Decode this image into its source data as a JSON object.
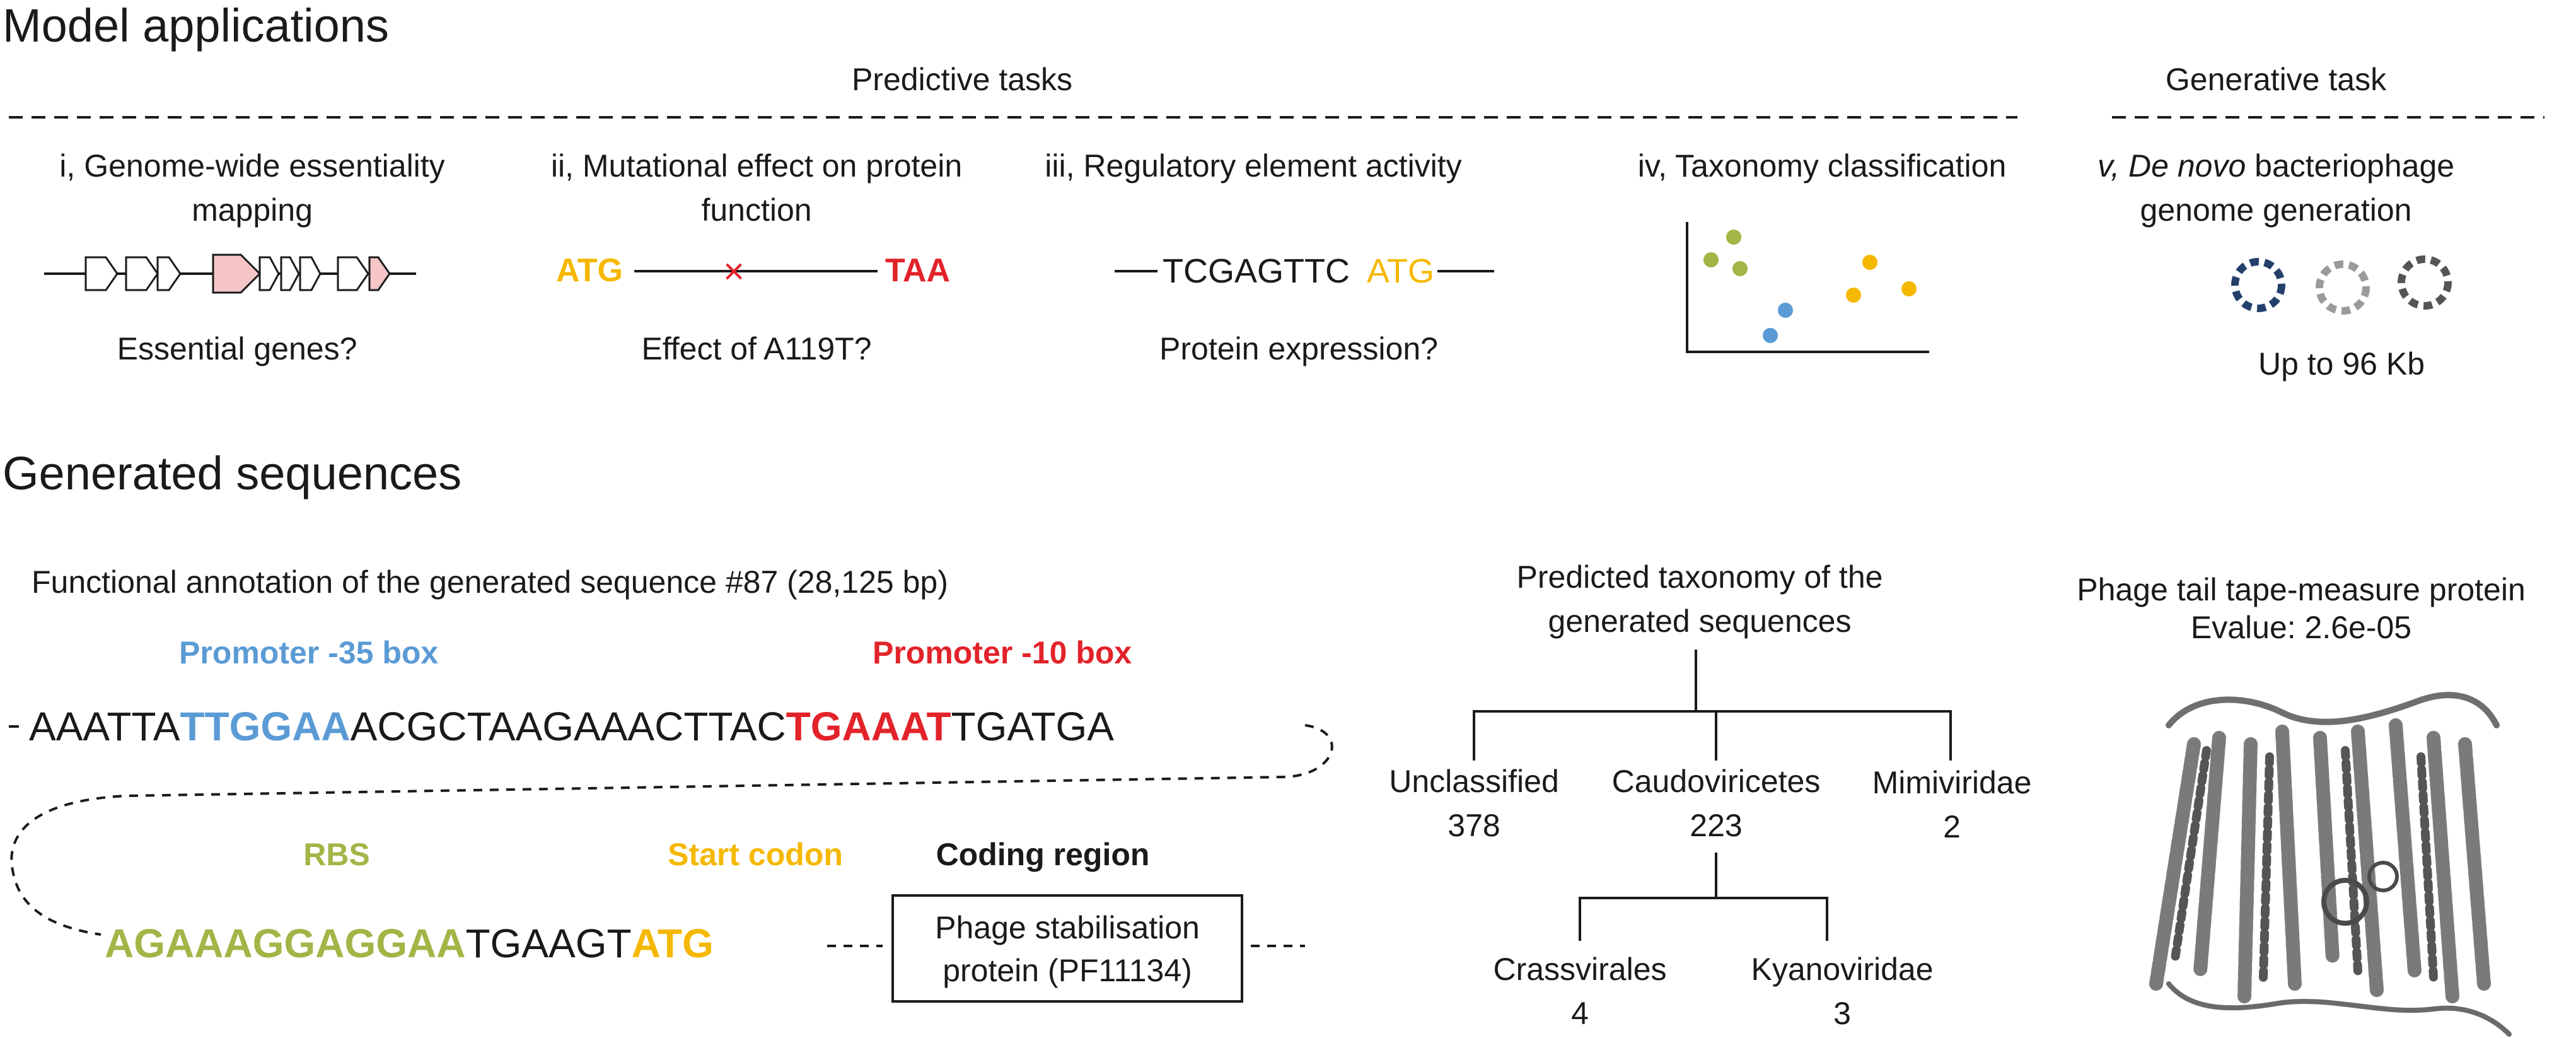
{
  "colors": {
    "blue": "#5b9bd5",
    "red": "#e2232a",
    "orange": "#f5b800",
    "olive": "#a4b446",
    "pink": "#f6c6c6",
    "navy": "#24406b",
    "gray": "#8a8a8a",
    "darkgray": "#555555"
  },
  "section_model": {
    "title": "Model applications",
    "predictive_header": "Predictive tasks",
    "generative_header": "Generative task"
  },
  "task_i": {
    "title_line1": "i, Genome-wide essentiality",
    "title_line2": "mapping",
    "question": "Essential genes?",
    "icon": "gene-arrows-icon"
  },
  "task_ii": {
    "title_line1": "ii, Mutational effect on protein",
    "title_line2": "function",
    "start": "ATG",
    "stop": "TAA",
    "mutation_mark": "×",
    "question": "Effect of A119T?"
  },
  "task_iii": {
    "title": "iii, Regulatory element activity",
    "sequence": "TCGAGTTC",
    "codon": "ATG",
    "question": "Protein expression?"
  },
  "task_iv": {
    "title": "iv, Taxonomy classification",
    "icon": "scatter-plot-icon"
  },
  "task_v": {
    "title_prefix": "v, ",
    "title_italic": "De novo",
    "title_rest": " bacteriophage",
    "title_line2": "genome generation",
    "size": "Up to 96 Kb",
    "icon": "circular-genome-icon"
  },
  "section_generated": {
    "title": "Generated sequences"
  },
  "annotation": {
    "title": "Functional annotation of the generated sequence #87 (28,125 bp)",
    "promoter35_label": "Promoter -35 box",
    "promoter10_label": "Promoter -10 box",
    "seq1_a": "AAATTA",
    "seq1_box35": "TTGGAA",
    "seq1_b": "ACGCTAAGAAACTTAC",
    "seq1_box10": "TGAAAT",
    "seq1_c": "TGATGA",
    "rbs_label": "RBS",
    "start_label": "Start codon",
    "coding_label": "Coding region",
    "seq2_rbs": "AGAAAGGAGGAA",
    "seq2_mid": "TGAAGT",
    "seq2_start": "ATG",
    "coding_line1": "Phage stabilisation",
    "coding_line2": "protein (PF11134)"
  },
  "taxonomy": {
    "title_line1": "Predicted taxonomy of the",
    "title_line2": "generated sequences",
    "nodes": [
      {
        "name": "Unclassified",
        "count": "378"
      },
      {
        "name": "Caudoviricetes",
        "count": "223"
      },
      {
        "name": "Mimiviridae",
        "count": "2"
      }
    ],
    "children": [
      {
        "name": "Crassvirales",
        "count": "4"
      },
      {
        "name": "Kyanoviridae",
        "count": "3"
      }
    ]
  },
  "protein": {
    "title": "Phage tail tape-measure protein",
    "evalue": "Evalue: 2.6e-05",
    "icon": "protein-structure-icon"
  }
}
